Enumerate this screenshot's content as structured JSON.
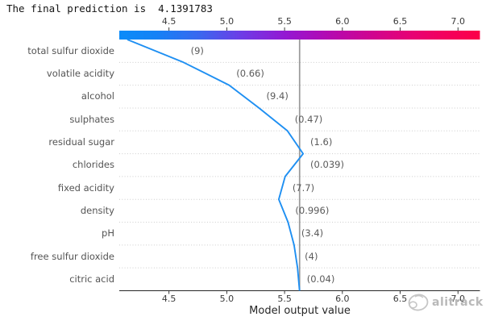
{
  "title": "The final prediction is  4.1391783",
  "watermark": {
    "text": "alitrack",
    "icon": "scribble-circle-logo"
  },
  "colors": {
    "line": "#1e8ff2",
    "base_value_line": "#9a9a9a",
    "gridline": "#cccccc",
    "axis": "#262626",
    "tick_label": "#3a3a3a",
    "feature_label": "#545454"
  },
  "chart_data": {
    "type": "line",
    "subtype": "shap-decision-plot",
    "title": "The final prediction is  4.1391783",
    "xlabel": "Model output value",
    "x_ticks": [
      4.5,
      5.0,
      5.5,
      6.0,
      6.5,
      7.0
    ],
    "xlim": [
      4.07,
      7.19
    ],
    "base_value": 5.63,
    "final_prediction": 4.1391783,
    "grid": "dotted horizontal row separators",
    "legend_position": "none",
    "colorbar": {
      "position": "top",
      "stops": [
        {
          "offset": 0.0,
          "color": "#0b8bf8"
        },
        {
          "offset": 0.1,
          "color": "#1482f6"
        },
        {
          "offset": 0.22,
          "color": "#3968ef"
        },
        {
          "offset": 0.34,
          "color": "#6e3ce6"
        },
        {
          "offset": 0.46,
          "color": "#9418d2"
        },
        {
          "offset": 0.57,
          "color": "#b10bb4"
        },
        {
          "offset": 0.68,
          "color": "#cb0595"
        },
        {
          "offset": 0.8,
          "color": "#e50277"
        },
        {
          "offset": 0.9,
          "color": "#f3005e"
        },
        {
          "offset": 1.0,
          "color": "#fc0048"
        }
      ]
    },
    "features": [
      {
        "name": "total sulfur dioxide",
        "value_label": "(9)",
        "cumulative": 4.139,
        "shap_value": -0.486
      },
      {
        "name": "volatile acidity",
        "value_label": "(0.66)",
        "cumulative": 4.625,
        "shap_value": -0.395
      },
      {
        "name": "alcohol",
        "value_label": "(9.4)",
        "cumulative": 5.02,
        "shap_value": -0.26
      },
      {
        "name": "sulphates",
        "value_label": "(0.47)",
        "cumulative": 5.28,
        "shap_value": -0.245
      },
      {
        "name": "residual sugar",
        "value_label": "(1.6)",
        "cumulative": 5.525,
        "shap_value": -0.135
      },
      {
        "name": "chlorides",
        "value_label": "(0.039)",
        "cumulative": 5.66,
        "shap_value": 0.155
      },
      {
        "name": "fixed acidity",
        "value_label": "(7.7)",
        "cumulative": 5.505,
        "shap_value": 0.055
      },
      {
        "name": "density",
        "value_label": "(0.996)",
        "cumulative": 5.45,
        "shap_value": -0.08
      },
      {
        "name": "pH",
        "value_label": "(3.4)",
        "cumulative": 5.53,
        "shap_value": -0.052
      },
      {
        "name": "free sulfur dioxide",
        "value_label": "(4)",
        "cumulative": 5.582,
        "shap_value": -0.03
      },
      {
        "name": "citric acid",
        "value_label": "(0.04)",
        "cumulative": 5.612,
        "shap_value": -0.018
      }
    ]
  }
}
